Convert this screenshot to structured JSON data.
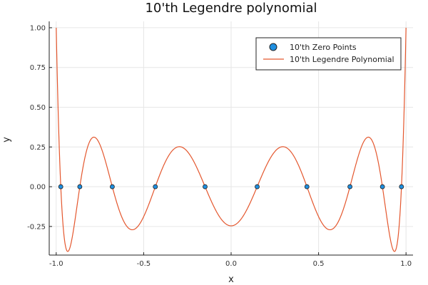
{
  "chart_data": {
    "type": "line",
    "title": "10'th Legendre polynomial",
    "xlabel": "x",
    "ylabel": "y",
    "xlim": [
      -1.04,
      1.04
    ],
    "ylim": [
      -0.43,
      1.04
    ],
    "xticks": [
      -1.0,
      -0.5,
      0.0,
      0.5,
      1.0
    ],
    "xtick_labels": [
      "-1.0",
      "-0.5",
      "0.0",
      "0.5",
      "1.0"
    ],
    "yticks": [
      -0.25,
      0.0,
      0.25,
      0.5,
      0.75,
      1.0
    ],
    "ytick_labels": [
      "-0.25",
      "0.00",
      "0.25",
      "0.50",
      "0.75",
      "1.00"
    ],
    "grid": true,
    "legend_position": "top-right",
    "series": [
      {
        "name": "10'th Zero Points",
        "kind": "scatter",
        "color": "#1f8fe0",
        "x": [
          -0.9739,
          -0.8651,
          -0.6794,
          -0.4334,
          -0.1489,
          0.1489,
          0.4334,
          0.6794,
          0.8651,
          0.9739
        ],
        "y": [
          0,
          0,
          0,
          0,
          0,
          0,
          0,
          0,
          0,
          0
        ]
      },
      {
        "name": "10'th Legendre Polynomial",
        "kind": "line",
        "color": "#e4572e",
        "function": "P10",
        "x_range": [
          -1.0,
          1.0
        ]
      }
    ]
  }
}
